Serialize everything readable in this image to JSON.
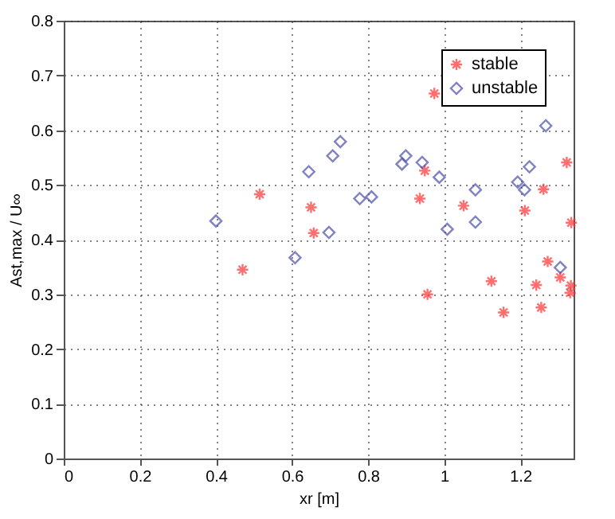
{
  "chart_data": {
    "type": "scatter",
    "xlabel": "xr [m]",
    "ylabel": "Ast,max / U∞",
    "xlim": [
      0,
      1.34
    ],
    "ylim": [
      0,
      0.8
    ],
    "xticks": [
      0,
      0.2,
      0.4,
      0.6,
      0.8,
      1,
      1.2
    ],
    "yticks": [
      0,
      0.1,
      0.2,
      0.3,
      0.4,
      0.5,
      0.6,
      0.7,
      0.8
    ],
    "grid": true,
    "legend": "top right",
    "series": [
      {
        "name": "stable",
        "color": "#ff3333",
        "marker": "cross",
        "x": [
          0.47,
          0.515,
          0.974,
          0.65,
          0.657,
          0.949,
          0.936,
          1.051,
          1.212,
          1.261,
          1.322,
          1.334,
          0.956,
          1.124,
          1.156,
          1.272,
          1.242,
          1.255,
          1.305,
          1.333,
          1.331
        ],
        "values": [
          0.345,
          0.483,
          0.667,
          0.459,
          0.412,
          0.526,
          0.475,
          0.462,
          0.453,
          0.492,
          0.541,
          0.431,
          0.3,
          0.324,
          0.267,
          0.36,
          0.317,
          0.276,
          0.331,
          0.316,
          0.303
        ]
      },
      {
        "name": "unstable",
        "color": "#4b4fa8",
        "marker": "diamond",
        "x": [
          0.4,
          0.608,
          0.644,
          0.707,
          0.727,
          0.697,
          0.778,
          0.809,
          0.889,
          0.899,
          0.942,
          0.987,
          1.008,
          1.082,
          1.082,
          1.193,
          1.211,
          1.224,
          1.267,
          1.305
        ],
        "values": [
          0.434,
          0.367,
          0.524,
          0.553,
          0.579,
          0.413,
          0.475,
          0.478,
          0.538,
          0.553,
          0.541,
          0.514,
          0.419,
          0.491,
          0.432,
          0.505,
          0.491,
          0.533,
          0.608,
          0.349
        ]
      }
    ]
  }
}
